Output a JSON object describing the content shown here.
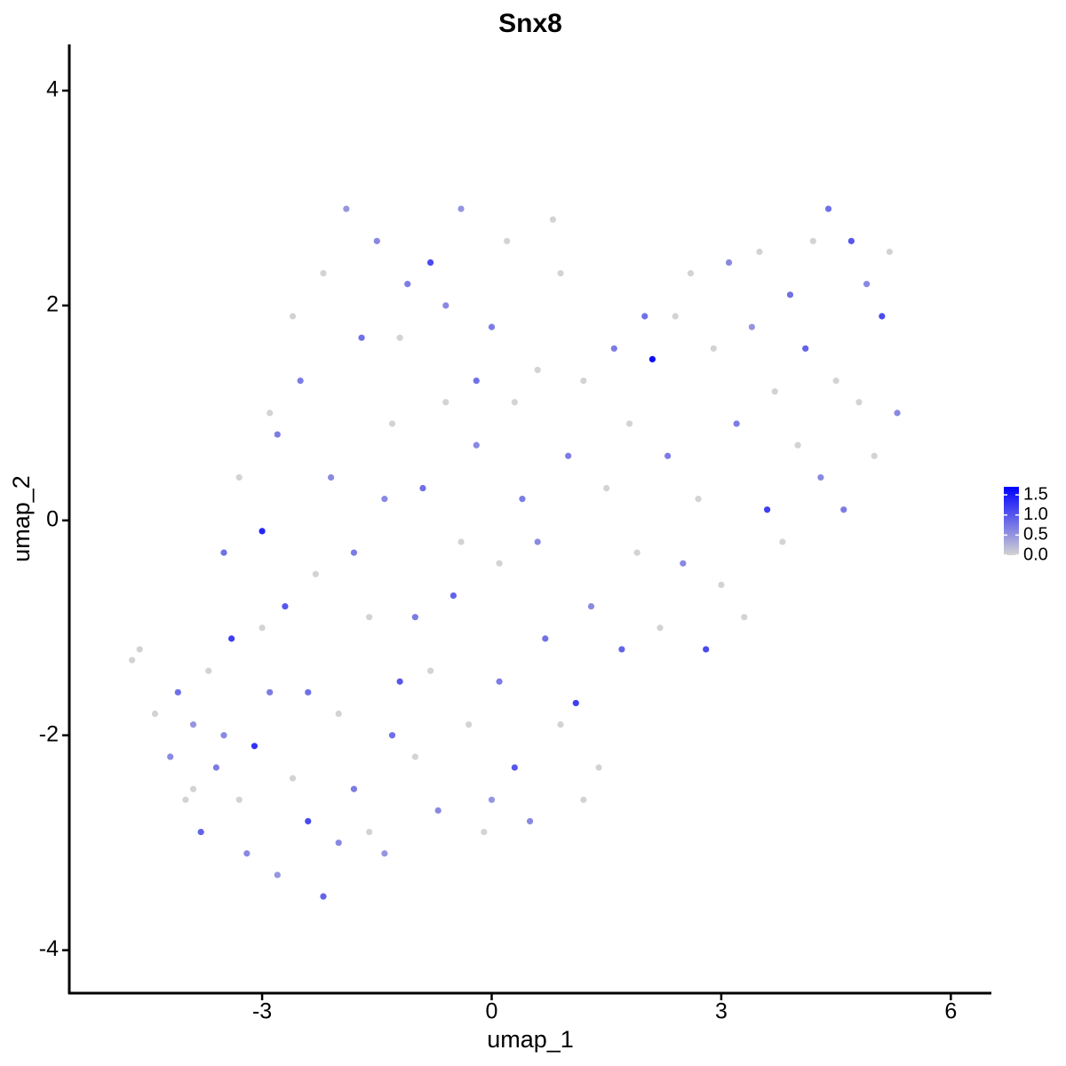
{
  "chart_data": {
    "type": "scatter",
    "title": "Snx8",
    "x_label": "umap_1",
    "y_label": "umap_2",
    "xlim": [
      -5.52,
      6.53
    ],
    "ylim": [
      -4.4,
      4.43
    ],
    "xticks": [
      -3,
      0,
      3,
      6
    ],
    "yticks": [
      -4,
      -2,
      0,
      2,
      4
    ],
    "colorlim": [
      0,
      1.7
    ],
    "colors": [
      "#d3d3d3",
      "#0000ff"
    ],
    "colorbar_ticks": [
      {
        "value": 0,
        "label": "0.0"
      },
      {
        "value": 0.5,
        "label": "0.5"
      },
      {
        "value": 1,
        "label": "1.0"
      },
      {
        "value": 1.5,
        "label": "1.5"
      }
    ],
    "x": [
      -4.7,
      -4.6,
      -4.4,
      -4.2,
      -4.1,
      -4.0,
      -3.9,
      -3.8,
      -3.7,
      -3.6,
      -3.5,
      -3.4,
      -3.3,
      -3.2,
      -3.1,
      -3.0,
      -2.9,
      -2.8,
      -2.7,
      -2.6,
      -2.5,
      -2.4,
      -2.3,
      -2.2,
      -2.1,
      -2.0,
      -1.9,
      -1.8,
      -1.7,
      -1.6,
      -1.5,
      -1.4,
      -1.3,
      -1.2,
      -1.1,
      -1.0,
      -0.9,
      -0.8,
      -0.7,
      -0.6,
      -0.5,
      -0.4,
      -0.3,
      -0.2,
      -0.1,
      0.0,
      0.1,
      0.2,
      0.3,
      0.4,
      0.5,
      0.6,
      0.7,
      0.8,
      0.9,
      1.0,
      1.1,
      1.2,
      1.3,
      1.4,
      1.5,
      1.6,
      1.7,
      1.8,
      1.9,
      2.0,
      2.1,
      2.2,
      2.3,
      2.4,
      2.5,
      2.6,
      2.7,
      2.8,
      2.9,
      3.0,
      3.1,
      3.2,
      3.3,
      3.4,
      3.5,
      3.6,
      3.7,
      3.8,
      3.9,
      4.0,
      4.1,
      4.2,
      4.3,
      4.4,
      4.5,
      4.6,
      4.7,
      4.8,
      4.9,
      5.0,
      5.1,
      5.2,
      5.3,
      -3.9,
      -3.5,
      -3.0,
      -2.8,
      -2.6,
      -2.4,
      -2.2,
      -1.8,
      -1.6,
      -1.4,
      -1.2,
      -1.0,
      -0.8,
      -0.6,
      -0.4,
      -0.2,
      0.1,
      0.3,
      0.6,
      0.9,
      -3.3,
      -2.9,
      -2.0,
      -1.3,
      0.0,
      1.2
    ],
    "y": [
      -1.3,
      -1.2,
      -1.8,
      -2.2,
      -1.6,
      -2.6,
      -1.9,
      -2.9,
      -1.4,
      -2.3,
      -0.3,
      -1.1,
      -2.6,
      -3.1,
      -2.1,
      -0.1,
      -1.6,
      -3.3,
      -0.8,
      -2.4,
      1.3,
      -2.8,
      -0.5,
      -3.5,
      0.4,
      -1.8,
      2.9,
      -2.5,
      1.7,
      -0.9,
      2.6,
      -3.1,
      0.9,
      -1.5,
      2.2,
      -2.2,
      0.3,
      2.4,
      -2.7,
      1.1,
      -0.7,
      2.9,
      -1.9,
      0.7,
      -2.9,
      1.8,
      -0.4,
      2.6,
      -2.3,
      0.2,
      -2.8,
      1.4,
      -1.1,
      2.8,
      -1.9,
      0.6,
      -1.7,
      1.3,
      -0.8,
      -2.3,
      0.3,
      1.6,
      -1.2,
      0.9,
      -0.3,
      1.9,
      1.5,
      -1.0,
      0.6,
      1.9,
      -0.4,
      2.3,
      0.2,
      -1.2,
      1.6,
      -0.6,
      2.4,
      0.9,
      -0.9,
      1.8,
      2.5,
      0.1,
      1.2,
      -0.2,
      2.1,
      0.7,
      1.6,
      2.6,
      0.4,
      2.9,
      1.3,
      0.1,
      2.6,
      1.1,
      2.2,
      0.6,
      1.9,
      2.5,
      1.0,
      -2.5,
      -2.0,
      -1.0,
      0.8,
      1.9,
      -1.6,
      2.3,
      -0.3,
      -2.9,
      0.2,
      1.7,
      -0.9,
      -1.4,
      2.0,
      -0.2,
      1.3,
      -1.5,
      1.1,
      -0.2,
      2.3,
      0.4,
      1.0,
      -3.0,
      -2.0,
      -2.6,
      -2.6
    ],
    "expression": [
      0,
      0,
      0,
      0.6,
      0.8,
      0,
      0.5,
      0.9,
      0,
      0.7,
      0.8,
      1.2,
      0,
      0.6,
      1.3,
      1.4,
      0.7,
      0.5,
      1.0,
      0,
      0.7,
      1.1,
      0,
      0.9,
      0.6,
      0,
      0.5,
      0.7,
      0.8,
      0,
      0.6,
      0.5,
      0,
      1.0,
      0.7,
      0,
      0.8,
      1.1,
      0.6,
      0,
      0.9,
      0.5,
      0,
      0.6,
      0,
      0.7,
      0,
      0,
      1.0,
      0.7,
      0.6,
      0,
      0.8,
      0,
      0,
      0.7,
      1.2,
      0,
      0.6,
      0,
      0,
      0.7,
      0.9,
      0,
      0,
      0.8,
      1.6,
      0,
      0.7,
      0,
      0.6,
      0,
      0,
      1.1,
      0,
      0,
      0.6,
      0.7,
      0,
      0.5,
      0,
      1.2,
      0,
      0,
      0.8,
      0,
      0.9,
      0,
      0.6,
      0.8,
      0,
      0.7,
      1.0,
      0,
      0.6,
      0,
      1.1,
      0,
      0.6,
      0,
      0.6,
      0,
      0.7,
      0,
      0.8,
      0,
      0.7,
      0,
      0.6,
      0,
      0.7,
      0,
      0.6,
      0,
      0.8,
      0.7,
      0,
      0.6,
      0,
      0,
      0,
      0.6,
      0.8,
      0.5,
      0
    ]
  }
}
